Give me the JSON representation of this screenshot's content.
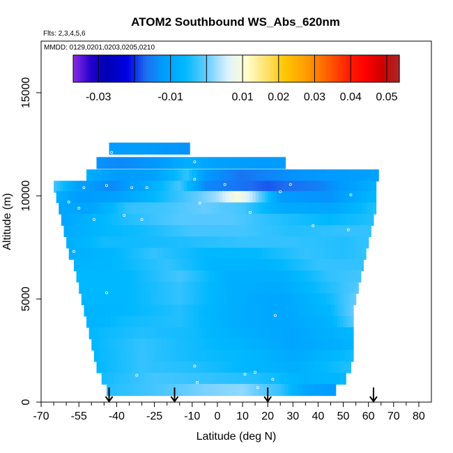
{
  "chart_data": {
    "type": "heatmap",
    "title": "ATOM2 Southbound WS_Abs_620nm",
    "subtitle_flights": "Flts: 2,3,4,5,6",
    "subtitle_dates": "MMDD: 0129,0201,0203,0205,0210",
    "xlabel": "Latitude (deg N)",
    "ylabel": "Altitude (m)",
    "xlim": [
      -70,
      85
    ],
    "ylim": [
      0,
      17500
    ],
    "x_major_ticks": [
      -70,
      -55,
      -40,
      -25,
      -10,
      0,
      10,
      20,
      30,
      40,
      50,
      60,
      70,
      80
    ],
    "x_minor_ticks": [
      -65,
      -60,
      -50,
      -45,
      -35,
      -30,
      -20,
      -15,
      -5,
      5,
      15,
      25,
      35,
      45,
      55,
      65,
      75
    ],
    "y_ticks": [
      0,
      5000,
      10000,
      15000
    ],
    "colorbar": {
      "labels": [
        "-0.03",
        "-0.01",
        "0.01",
        "0.02",
        "0.03",
        "0.04",
        "0.05"
      ],
      "label_values": [
        -0.03,
        -0.01,
        0.01,
        0.02,
        0.03,
        0.04,
        0.05
      ],
      "divider_values": [
        -0.03,
        -0.02,
        -0.01,
        0,
        0.01,
        0.02,
        0.03,
        0.04,
        0.05
      ],
      "range": [
        -0.037,
        0.0535
      ],
      "stops": [
        {
          "v": -0.037,
          "c": "#8a2be2"
        },
        {
          "v": -0.032,
          "c": "#2200cc"
        },
        {
          "v": -0.028,
          "c": "#0000b4"
        },
        {
          "v": -0.022,
          "c": "#0000e0"
        },
        {
          "v": -0.017,
          "c": "#1e6cf0"
        },
        {
          "v": -0.012,
          "c": "#009cff"
        },
        {
          "v": -0.006,
          "c": "#00b8ff"
        },
        {
          "v": 0.0,
          "c": "#66ccff"
        },
        {
          "v": 0.006,
          "c": "#dff2ff"
        },
        {
          "v": 0.011,
          "c": "#ffffd0"
        },
        {
          "v": 0.017,
          "c": "#ffe066"
        },
        {
          "v": 0.022,
          "c": "#ffc400"
        },
        {
          "v": 0.028,
          "c": "#ff9900"
        },
        {
          "v": 0.033,
          "c": "#ff6600"
        },
        {
          "v": 0.039,
          "c": "#ff2200"
        },
        {
          "v": 0.044,
          "c": "#ff0000"
        },
        {
          "v": 0.049,
          "c": "#cc0000"
        },
        {
          "v": 0.0535,
          "c": "#a52a2a"
        }
      ]
    },
    "field_rows": [
      {
        "alt": 12300,
        "lat_min": -43,
        "lat_max": -11,
        "anchors": [
          [
            -43,
            -0.012
          ],
          [
            -30,
            -0.012
          ],
          [
            -11,
            -0.013
          ]
        ]
      },
      {
        "alt": 11600,
        "lat_min": -48,
        "lat_max": 27,
        "anchors": [
          [
            -48,
            -0.013
          ],
          [
            -38,
            -0.014
          ],
          [
            -22,
            -0.012
          ],
          [
            -12,
            -0.008
          ],
          [
            0,
            -0.011
          ],
          [
            15,
            -0.012
          ],
          [
            27,
            -0.012
          ]
        ]
      },
      {
        "alt": 11000,
        "lat_min": -52,
        "lat_max": 64,
        "anchors": [
          [
            -52,
            -0.008
          ],
          [
            -40,
            -0.012
          ],
          [
            -25,
            -0.011
          ],
          [
            -12,
            -0.003
          ],
          [
            -5,
            -0.012
          ],
          [
            10,
            -0.016
          ],
          [
            30,
            -0.013
          ],
          [
            64,
            -0.011
          ]
        ]
      },
      {
        "alt": 10450,
        "lat_min": -65,
        "lat_max": 63,
        "anchors": [
          [
            -65,
            -0.002
          ],
          [
            -55,
            -0.011
          ],
          [
            -42,
            -0.014
          ],
          [
            -30,
            -0.01
          ],
          [
            -15,
            -0.002
          ],
          [
            -5,
            -0.014
          ],
          [
            20,
            -0.018
          ],
          [
            40,
            -0.015
          ],
          [
            63,
            -0.008
          ]
        ]
      },
      {
        "alt": 9950,
        "lat_min": -64,
        "lat_max": 63,
        "anchors": [
          [
            -64,
            -0.008
          ],
          [
            -55,
            -0.012
          ],
          [
            -40,
            -0.011
          ],
          [
            -25,
            -0.006
          ],
          [
            -10,
            -0.001
          ],
          [
            0,
            0.003
          ],
          [
            8,
            0.01
          ],
          [
            14,
            0.004
          ],
          [
            25,
            -0.012
          ],
          [
            45,
            -0.013
          ],
          [
            63,
            -0.006
          ]
        ]
      },
      {
        "alt": 9400,
        "lat_min": -63,
        "lat_max": 63,
        "anchors": [
          [
            -63,
            -0.01
          ],
          [
            -50,
            -0.01
          ],
          [
            -35,
            -0.003
          ],
          [
            -20,
            -0.002
          ],
          [
            -5,
            0.0
          ],
          [
            10,
            -0.002
          ],
          [
            25,
            -0.009
          ],
          [
            45,
            -0.01
          ],
          [
            63,
            -0.004
          ]
        ]
      },
      {
        "alt": 8850,
        "lat_min": -62,
        "lat_max": 62,
        "anchors": [
          [
            -62,
            -0.01
          ],
          [
            -50,
            -0.007
          ],
          [
            -35,
            -0.004
          ],
          [
            -15,
            -0.001
          ],
          [
            5,
            -0.001
          ],
          [
            25,
            -0.004
          ],
          [
            45,
            -0.006
          ],
          [
            62,
            -0.004
          ]
        ]
      },
      {
        "alt": 8300,
        "lat_min": -61,
        "lat_max": 61,
        "anchors": [
          [
            -61,
            -0.009
          ],
          [
            -45,
            -0.006
          ],
          [
            -30,
            -0.005
          ],
          [
            -10,
            -0.002
          ],
          [
            10,
            -0.002
          ],
          [
            30,
            -0.004
          ],
          [
            50,
            -0.003
          ],
          [
            61,
            -0.003
          ]
        ]
      },
      {
        "alt": 7750,
        "lat_min": -60,
        "lat_max": 60,
        "anchors": [
          [
            -60,
            -0.008
          ],
          [
            -45,
            -0.005
          ],
          [
            -30,
            -0.005
          ],
          [
            -10,
            -0.004
          ],
          [
            10,
            -0.003
          ],
          [
            30,
            -0.003
          ],
          [
            50,
            -0.004
          ],
          [
            60,
            -0.003
          ]
        ]
      },
      {
        "alt": 7200,
        "lat_min": -59,
        "lat_max": 59,
        "anchors": [
          [
            -59,
            -0.008
          ],
          [
            -40,
            -0.006
          ],
          [
            -25,
            -0.003
          ],
          [
            -5,
            -0.006
          ],
          [
            15,
            -0.006
          ],
          [
            35,
            -0.003
          ],
          [
            50,
            -0.004
          ],
          [
            59,
            -0.003
          ]
        ]
      },
      {
        "alt": 6650,
        "lat_min": -57,
        "lat_max": 58,
        "anchors": [
          [
            -57,
            -0.007
          ],
          [
            -40,
            -0.006
          ],
          [
            -20,
            -0.003
          ],
          [
            0,
            -0.007
          ],
          [
            20,
            -0.007
          ],
          [
            40,
            -0.003
          ],
          [
            58,
            -0.003
          ]
        ]
      },
      {
        "alt": 6100,
        "lat_min": -56,
        "lat_max": 57,
        "anchors": [
          [
            -56,
            -0.006
          ],
          [
            -35,
            -0.006
          ],
          [
            -15,
            -0.002
          ],
          [
            5,
            -0.008
          ],
          [
            25,
            -0.008
          ],
          [
            45,
            -0.003
          ],
          [
            57,
            -0.002
          ]
        ]
      },
      {
        "alt": 5550,
        "lat_min": -55,
        "lat_max": 56,
        "anchors": [
          [
            -55,
            -0.006
          ],
          [
            -35,
            -0.006
          ],
          [
            -15,
            -0.003
          ],
          [
            5,
            -0.008
          ],
          [
            25,
            -0.009
          ],
          [
            45,
            -0.004
          ],
          [
            56,
            -0.001
          ]
        ]
      },
      {
        "alt": 5000,
        "lat_min": -54,
        "lat_max": 55,
        "anchors": [
          [
            -54,
            -0.006
          ],
          [
            -35,
            -0.006
          ],
          [
            -15,
            -0.003
          ],
          [
            5,
            -0.008
          ],
          [
            25,
            -0.01
          ],
          [
            45,
            -0.005
          ],
          [
            55,
            0.0
          ]
        ]
      },
      {
        "alt": 4450,
        "lat_min": -53,
        "lat_max": 54,
        "anchors": [
          [
            -53,
            -0.007
          ],
          [
            -35,
            -0.006
          ],
          [
            -15,
            -0.004
          ],
          [
            5,
            -0.008
          ],
          [
            25,
            -0.01
          ],
          [
            45,
            -0.006
          ],
          [
            54,
            0.0
          ]
        ]
      },
      {
        "alt": 3900,
        "lat_min": -52,
        "lat_max": 54,
        "anchors": [
          [
            -52,
            -0.007
          ],
          [
            -35,
            -0.005
          ],
          [
            -15,
            -0.004
          ],
          [
            5,
            -0.008
          ],
          [
            25,
            -0.01
          ],
          [
            45,
            -0.007
          ],
          [
            54,
            -0.001
          ]
        ]
      },
      {
        "alt": 3350,
        "lat_min": -51,
        "lat_max": 54,
        "anchors": [
          [
            -51,
            -0.006
          ],
          [
            -30,
            -0.004
          ],
          [
            -10,
            -0.005
          ],
          [
            10,
            -0.008
          ],
          [
            30,
            -0.01
          ],
          [
            54,
            -0.006
          ]
        ]
      },
      {
        "alt": 2800,
        "lat_min": -50,
        "lat_max": 54,
        "anchors": [
          [
            -50,
            -0.006
          ],
          [
            -30,
            -0.003
          ],
          [
            -10,
            -0.005
          ],
          [
            10,
            -0.007
          ],
          [
            30,
            -0.01
          ],
          [
            54,
            -0.007
          ]
        ]
      },
      {
        "alt": 2250,
        "lat_min": -49,
        "lat_max": 54,
        "anchors": [
          [
            -49,
            -0.006
          ],
          [
            -30,
            -0.003
          ],
          [
            -10,
            -0.005
          ],
          [
            10,
            -0.006
          ],
          [
            30,
            -0.009
          ],
          [
            54,
            -0.005
          ]
        ]
      },
      {
        "alt": 1700,
        "lat_min": -48,
        "lat_max": 53,
        "anchors": [
          [
            -48,
            -0.006
          ],
          [
            -30,
            -0.003
          ],
          [
            -10,
            -0.004
          ],
          [
            10,
            -0.006
          ],
          [
            30,
            -0.008
          ],
          [
            53,
            -0.004
          ]
        ]
      },
      {
        "alt": 1150,
        "lat_min": -46,
        "lat_max": 51,
        "anchors": [
          [
            -46,
            -0.005
          ],
          [
            -25,
            -0.002
          ],
          [
            -5,
            -0.003
          ],
          [
            15,
            -0.004
          ],
          [
            35,
            -0.007
          ],
          [
            51,
            -0.006
          ]
        ]
      },
      {
        "alt": 600,
        "lat_min": -44,
        "lat_max": 47,
        "anchors": [
          [
            -44,
            -0.004
          ],
          [
            -25,
            -0.002
          ],
          [
            -5,
            0.001
          ],
          [
            10,
            0.002
          ],
          [
            25,
            -0.003
          ],
          [
            35,
            -0.01
          ],
          [
            47,
            -0.012
          ]
        ]
      }
    ],
    "row_thickness": 560,
    "sample_points": [
      {
        "lat": -42,
        "alt": 12100
      },
      {
        "lat": -53,
        "alt": 10400
      },
      {
        "lat": -34,
        "alt": 10400
      },
      {
        "lat": -28,
        "alt": 10400
      },
      {
        "lat": -44,
        "alt": 10500
      },
      {
        "lat": -59,
        "alt": 9700
      },
      {
        "lat": -55,
        "alt": 9400
      },
      {
        "lat": -49,
        "alt": 8850
      },
      {
        "lat": -37,
        "alt": 9050
      },
      {
        "lat": -30,
        "alt": 8850
      },
      {
        "lat": -57,
        "alt": 7300
      },
      {
        "lat": -44,
        "alt": 5300
      },
      {
        "lat": -9,
        "alt": 11650
      },
      {
        "lat": -9,
        "alt": 10800
      },
      {
        "lat": -7,
        "alt": 9650
      },
      {
        "lat": 3,
        "alt": 10550
      },
      {
        "lat": 13,
        "alt": 9200
      },
      {
        "lat": 25,
        "alt": 10200
      },
      {
        "lat": 29,
        "alt": 10550
      },
      {
        "lat": 38,
        "alt": 8550
      },
      {
        "lat": 52,
        "alt": 8350
      },
      {
        "lat": 53,
        "alt": 10050
      },
      {
        "lat": 23,
        "alt": 4200
      },
      {
        "lat": -9,
        "alt": 1750
      },
      {
        "lat": -8,
        "alt": 950
      },
      {
        "lat": 11,
        "alt": 1350
      },
      {
        "lat": 15,
        "alt": 1450
      },
      {
        "lat": 22,
        "alt": 1100
      },
      {
        "lat": -32,
        "alt": 1300
      },
      {
        "lat": 16,
        "alt": 700
      }
    ],
    "arrows_lat": [
      -43,
      -17,
      20,
      62
    ]
  }
}
